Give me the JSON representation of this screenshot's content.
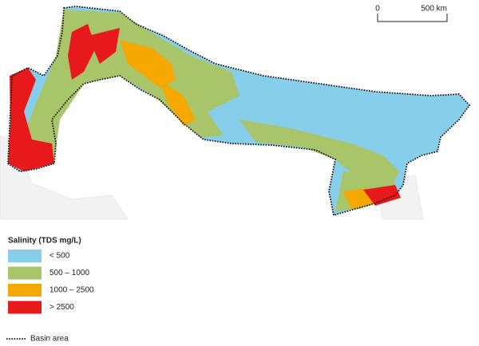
{
  "scale_bar": {
    "start": "0",
    "end": "500 km"
  },
  "legend": {
    "title": "Salinity (TDS mg/L)",
    "items": [
      {
        "label": "< 500",
        "color": "#87ceeb"
      },
      {
        "label": "500 – 1000",
        "color": "#a8c56a"
      },
      {
        "label": "1000 – 2500",
        "color": "#f5a800"
      },
      {
        "label": "> 2500",
        "color": "#e8191b"
      }
    ],
    "boundary": "Basin area"
  }
}
